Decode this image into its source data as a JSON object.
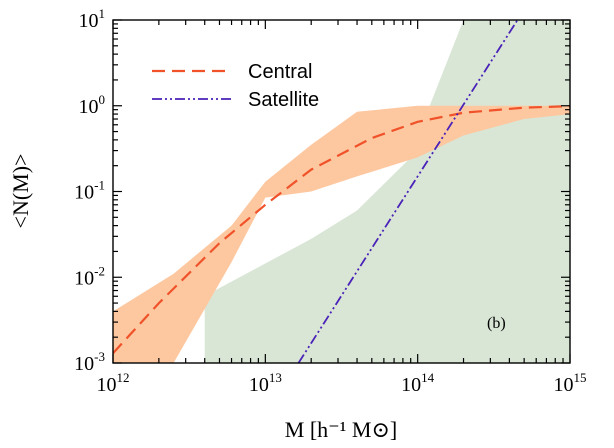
{
  "chart_data": {
    "type": "line",
    "x_scale": "log",
    "y_scale": "log",
    "xlim": [
      1000000000000.0,
      1000000000000000.0
    ],
    "ylim": [
      0.001,
      10
    ],
    "xlabel": "M [h⁻¹ M⊙]",
    "ylabel": "<N(M)>",
    "annotation": "(b)",
    "x_ticks": [
      {
        "value": 1000000000000.0,
        "base": "10",
        "exp": "12"
      },
      {
        "value": 10000000000000.0,
        "base": "10",
        "exp": "13"
      },
      {
        "value": 100000000000000.0,
        "base": "10",
        "exp": "14"
      },
      {
        "value": 1000000000000000.0,
        "base": "10",
        "exp": "15"
      }
    ],
    "y_ticks": [
      {
        "value": 0.001,
        "base": "10",
        "exp": "-3"
      },
      {
        "value": 0.01,
        "base": "10",
        "exp": "-2"
      },
      {
        "value": 0.1,
        "base": "10",
        "exp": "-1"
      },
      {
        "value": 1,
        "base": "10",
        "exp": "0"
      },
      {
        "value": 10,
        "base": "10",
        "exp": "1"
      }
    ],
    "legend_position": "top-left",
    "series": [
      {
        "name": "Central",
        "style": "dashed",
        "color": "#f0522a",
        "x": [
          1000000000000.0,
          2000000000000.0,
          5000000000000.0,
          10000000000000.0,
          20000000000000.0,
          50000000000000.0,
          100000000000000.0,
          200000000000000.0,
          500000000000000.0,
          1000000000000000.0
        ],
        "y": [
          0.0013,
          0.005,
          0.025,
          0.07,
          0.18,
          0.42,
          0.65,
          0.83,
          0.95,
          0.99
        ]
      },
      {
        "name": "Satellite",
        "style": "dash-dot-dot",
        "color": "#4a22b8",
        "x": [
          16500000000000.0,
          452000000000000.0
        ],
        "y": [
          0.001,
          10
        ]
      }
    ],
    "bands": [
      {
        "series": "Central",
        "color": "#fdc8a0",
        "x": [
          1000000000000.0,
          2500000000000.0,
          6000000000000.0,
          10000000000000.0,
          20000000000000.0,
          40000000000000.0,
          100000000000000.0,
          200000000000000.0,
          500000000000000.0,
          1000000000000000.0
        ],
        "upper": [
          0.004,
          0.011,
          0.04,
          0.13,
          0.35,
          0.85,
          1.0,
          1.0,
          1.0,
          1.0
        ],
        "lower": [
          0.001,
          0.001,
          0.015,
          0.085,
          0.1,
          0.15,
          0.25,
          0.45,
          0.7,
          0.8
        ]
      },
      {
        "series": "Satellite",
        "color": "#d9e6d6",
        "x": [
          4000000000000.0,
          5000000000000.0,
          20000000000000.0,
          40000000000000.0,
          100000000000000.0,
          120000000000000.0,
          200000000000000.0,
          1000000000000000.0
        ],
        "upper": [
          0.006,
          0.0075,
          0.028,
          0.06,
          0.3,
          1.0,
          10,
          10
        ],
        "lower": [
          0.001,
          0.001,
          0.001,
          0.001,
          0.001,
          0.001,
          0.001,
          0.001
        ]
      }
    ]
  }
}
